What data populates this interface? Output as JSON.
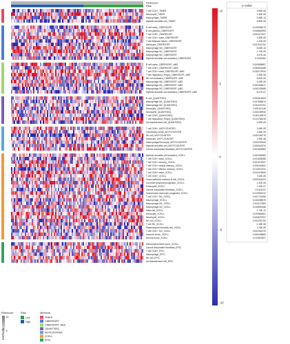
{
  "chart_data": {
    "type": "heatmap",
    "annotation_tracks": [
      "Riskscore",
      "Risk"
    ],
    "color_scale": {
      "min": -10,
      "max": 10,
      "ticks": [
        "10",
        "5",
        "0",
        "-5",
        "-10"
      ],
      "low_color": "#2c2cb0",
      "mid_color": "#ffffff",
      "high_color": "#e01020"
    },
    "pvalue_header": "p value",
    "methods_axis_label": "Methods",
    "legend": {
      "riskscore_title": "Riskscore",
      "riskscore_ticks": [
        "20",
        "5"
      ],
      "risk_title": "Risk",
      "risk_levels": [
        {
          "label": "Low",
          "color": "#2f9e44"
        },
        {
          "label": "High",
          "color": "#1f5aa6"
        }
      ],
      "methods_title": "Methods",
      "methods": [
        {
          "label": "TIMER",
          "color": "#e84a5f"
        },
        {
          "label": "CIBERSORT",
          "color": "#4a7fd4"
        },
        {
          "label": "CIBERSORT–ABS",
          "color": "#9fd86b"
        },
        {
          "label": "QUANTISEQ",
          "color": "#7b5cb8"
        },
        {
          "label": "MCPCOUNTER",
          "color": "#5aa7de"
        },
        {
          "label": "XCELL",
          "color": "#f29a38"
        },
        {
          "label": "EPIC",
          "color": "#3aa35a"
        }
      ]
    },
    "groups": [
      {
        "method": "TIMER",
        "rows": [
          {
            "label": "T cell CD4+_TIMER",
            "p": "9.95E-06"
          },
          {
            "label": "Neutrophil_TIMER",
            "p": "1.36E-05"
          },
          {
            "label": "Macrophage_TIMER",
            "p": "9.48E-13"
          },
          {
            "label": "Myeloid dendritic cell_TIMER",
            "p": "6.59E-06"
          }
        ]
      },
      {
        "method": "CIBERSORT",
        "rows": [
          {
            "label": "B cell naive_CIBERSORT",
            "p": "0.015098179"
          },
          {
            "label": "B cell plasma_CIBERSORT",
            "p": "0.006854993"
          },
          {
            "label": "T cell CD8+_CIBERSORT",
            "p": "0.000477407"
          },
          {
            "label": "T cell CD4+ naive_CIBERSORT",
            "p": "1.80E-05"
          },
          {
            "label": "T cell follicular helper_CIBERSORT",
            "p": "1.37E-05"
          },
          {
            "label": "Monocyte_CIBERSORT",
            "p": "0.001041762"
          },
          {
            "label": "Macrophage M0_CIBERSORT",
            "p": "8.06E-10"
          },
          {
            "label": "Macrophage M1_CIBERSORT",
            "p": "1.72E-05"
          },
          {
            "label": "Macrophage M2_CIBERSORT",
            "p": "2.57E-06"
          },
          {
            "label": "Myeloid dendritic cell activated_CIBERSORT",
            "p": "0.0002081"
          }
        ]
      },
      {
        "method": "CIBERSORT–ABS",
        "rows": [
          {
            "label": "B cell naive_CIBERSORT–ABS",
            "p": "0.000658857"
          },
          {
            "label": "T cell CD8+_CIBERSORT–ABS",
            "p": "0.050843468"
          },
          {
            "label": "T cell CD4+ naive_CIBERSORT–ABS",
            "p": "0.033179034"
          },
          {
            "label": "T cell regulatory (Tregs)_CIBERSORT–ABS",
            "p": "2.35E-08"
          },
          {
            "label": "NK cell activated_CIBERSORT–ABS",
            "p": "6.83E-05"
          },
          {
            "label": "Macrophage M0_CIBERSORT–ABS",
            "p": "6.28E-05"
          },
          {
            "label": "Macrophage M1_CIBERSORT–ABS",
            "p": "0.000306617"
          },
          {
            "label": "Macrophage M2_CIBERSORT–ABS",
            "p": "0.000193685"
          },
          {
            "label": "Myeloid dendritic cell activated_CIBERSORT–ABS",
            "p": "6.07E-07"
          }
        ]
      },
      {
        "method": "QUANTISEQ",
        "rows": [
          {
            "label": "B cell_QUANTISEQ",
            "p": "0.000519003"
          },
          {
            "label": "Macrophage M1_QUANTISEQ",
            "p": "0.047806674"
          },
          {
            "label": "Macrophage M2_QUANTISEQ",
            "p": "0.034232761"
          },
          {
            "label": "Monocyte_QUANTISEQ",
            "p": "0.000110145"
          },
          {
            "label": "Neutrophil_QUANTISEQ",
            "p": "0.000159932"
          },
          {
            "label": "T cell CD8+_QUANTISEQ",
            "p": "0.044149574"
          },
          {
            "label": "T cell regulatory (Tregs)_QUANTISEQ",
            "p": "0.014768015"
          },
          {
            "label": "Uncharacterized cell_QUANTISEQ",
            "p": "3.49E-05"
          }
        ]
      },
      {
        "method": "MCPCOUNTER",
        "rows": [
          {
            "label": "T cell CD8+_MCPCOUNTER",
            "p": "3.48E-09"
          },
          {
            "label": "Cytotoxicity score_MCPCOUNTER",
            "p": "3.48E-09"
          },
          {
            "label": "NK cell_MCPCOUNTER",
            "p": "0.000166775"
          },
          {
            "label": "Monocyte_MCPCOUNTER",
            "p": "1.95E-08"
          },
          {
            "label": "Macrophage/Monocyte_MCPCOUNTER",
            "p": "0.002035344"
          },
          {
            "label": "Myeloid dendritic cell_MCPCOUNTER",
            "p": "0.000540374"
          },
          {
            "label": "Cancer associated fibroblast_MCPCOUNTER",
            "p": "0.001828964"
          }
        ]
      },
      {
        "method": "XCELL",
        "rows": [
          {
            "label": "Myeloid dendritic cell activated_XCELL",
            "p": "0.002395383"
          },
          {
            "label": "T cell CD4+ naive_XCELL",
            "p": "0.001835555"
          },
          {
            "label": "T cell CD4+ memory_XCELL",
            "p": "0.001979337"
          },
          {
            "label": "T cell CD4+ central memory_XCELL",
            "p": "0.000349611"
          },
          {
            "label": "T cell CD4+ effector memory_XCELL",
            "p": "0.013972231"
          },
          {
            "label": "T cell CD8+ naive_XCELL",
            "p": "0.000476605"
          },
          {
            "label": "T cell CD8+_XCELL",
            "p": "7.63E-05"
          },
          {
            "label": "Class-switched memory B cell_XCELL",
            "p": "0.000416104"
          },
          {
            "label": "Common lymphoid progenitor_XCELL",
            "p": "1.32E-05"
          },
          {
            "label": "Eosinophil_XCELL",
            "p": "7.44E-07"
          },
          {
            "label": "Cancer associated fibroblast_XCELL",
            "p": "0.0114221"
          },
          {
            "label": "Granulocyte-monocyte progenitor_XCELL",
            "p": "0.013992312"
          },
          {
            "label": "T cell CD4+ Th1_XCELL",
            "p": "0.007722455"
          },
          {
            "label": "Macrophage_XCELL",
            "p": "0.043285879"
          },
          {
            "label": "Macrophage M1_XCELL",
            "p": "0.001170383"
          },
          {
            "label": "Macrophage M2_XCELL",
            "p": "0.019809166"
          },
          {
            "label": "Mast cell_XCELL",
            "p": "2.73E-12"
          },
          {
            "label": "Monocyte_XCELL",
            "p": "0.029965301"
          },
          {
            "label": "Neutrophil_XCELL",
            "p": "0.003679707"
          },
          {
            "label": "NK cell_XCELL",
            "p": "0.001251753"
          },
          {
            "label": "T cell NK_XCELL",
            "p": "4.18E-08"
          },
          {
            "label": "Plasmacytoid dendritic cell_XCELL",
            "p": "1.23E-08"
          },
          {
            "label": "T cell CD4+ Th2_XCELL",
            "p": "0.002361379"
          },
          {
            "label": "Immune score_XCELL",
            "p": "0.006445863"
          },
          {
            "label": "Stroma score_XCELL",
            "p": "0.012519927"
          }
        ]
      },
      {
        "method": "EPIC",
        "rows": [
          {
            "label": "Microenvironment score_XCELL",
            "p": ""
          },
          {
            "label": "Cancer associated fibroblast_EPIC",
            "p": ""
          },
          {
            "label": "T cell CD8+_EPIC",
            "p": ""
          },
          {
            "label": "Macrophage_EPIC",
            "p": ""
          },
          {
            "label": "NK cell_EPIC",
            "p": ""
          },
          {
            "label": "Uncharacterized cell_EPIC",
            "p": ""
          }
        ]
      }
    ]
  }
}
